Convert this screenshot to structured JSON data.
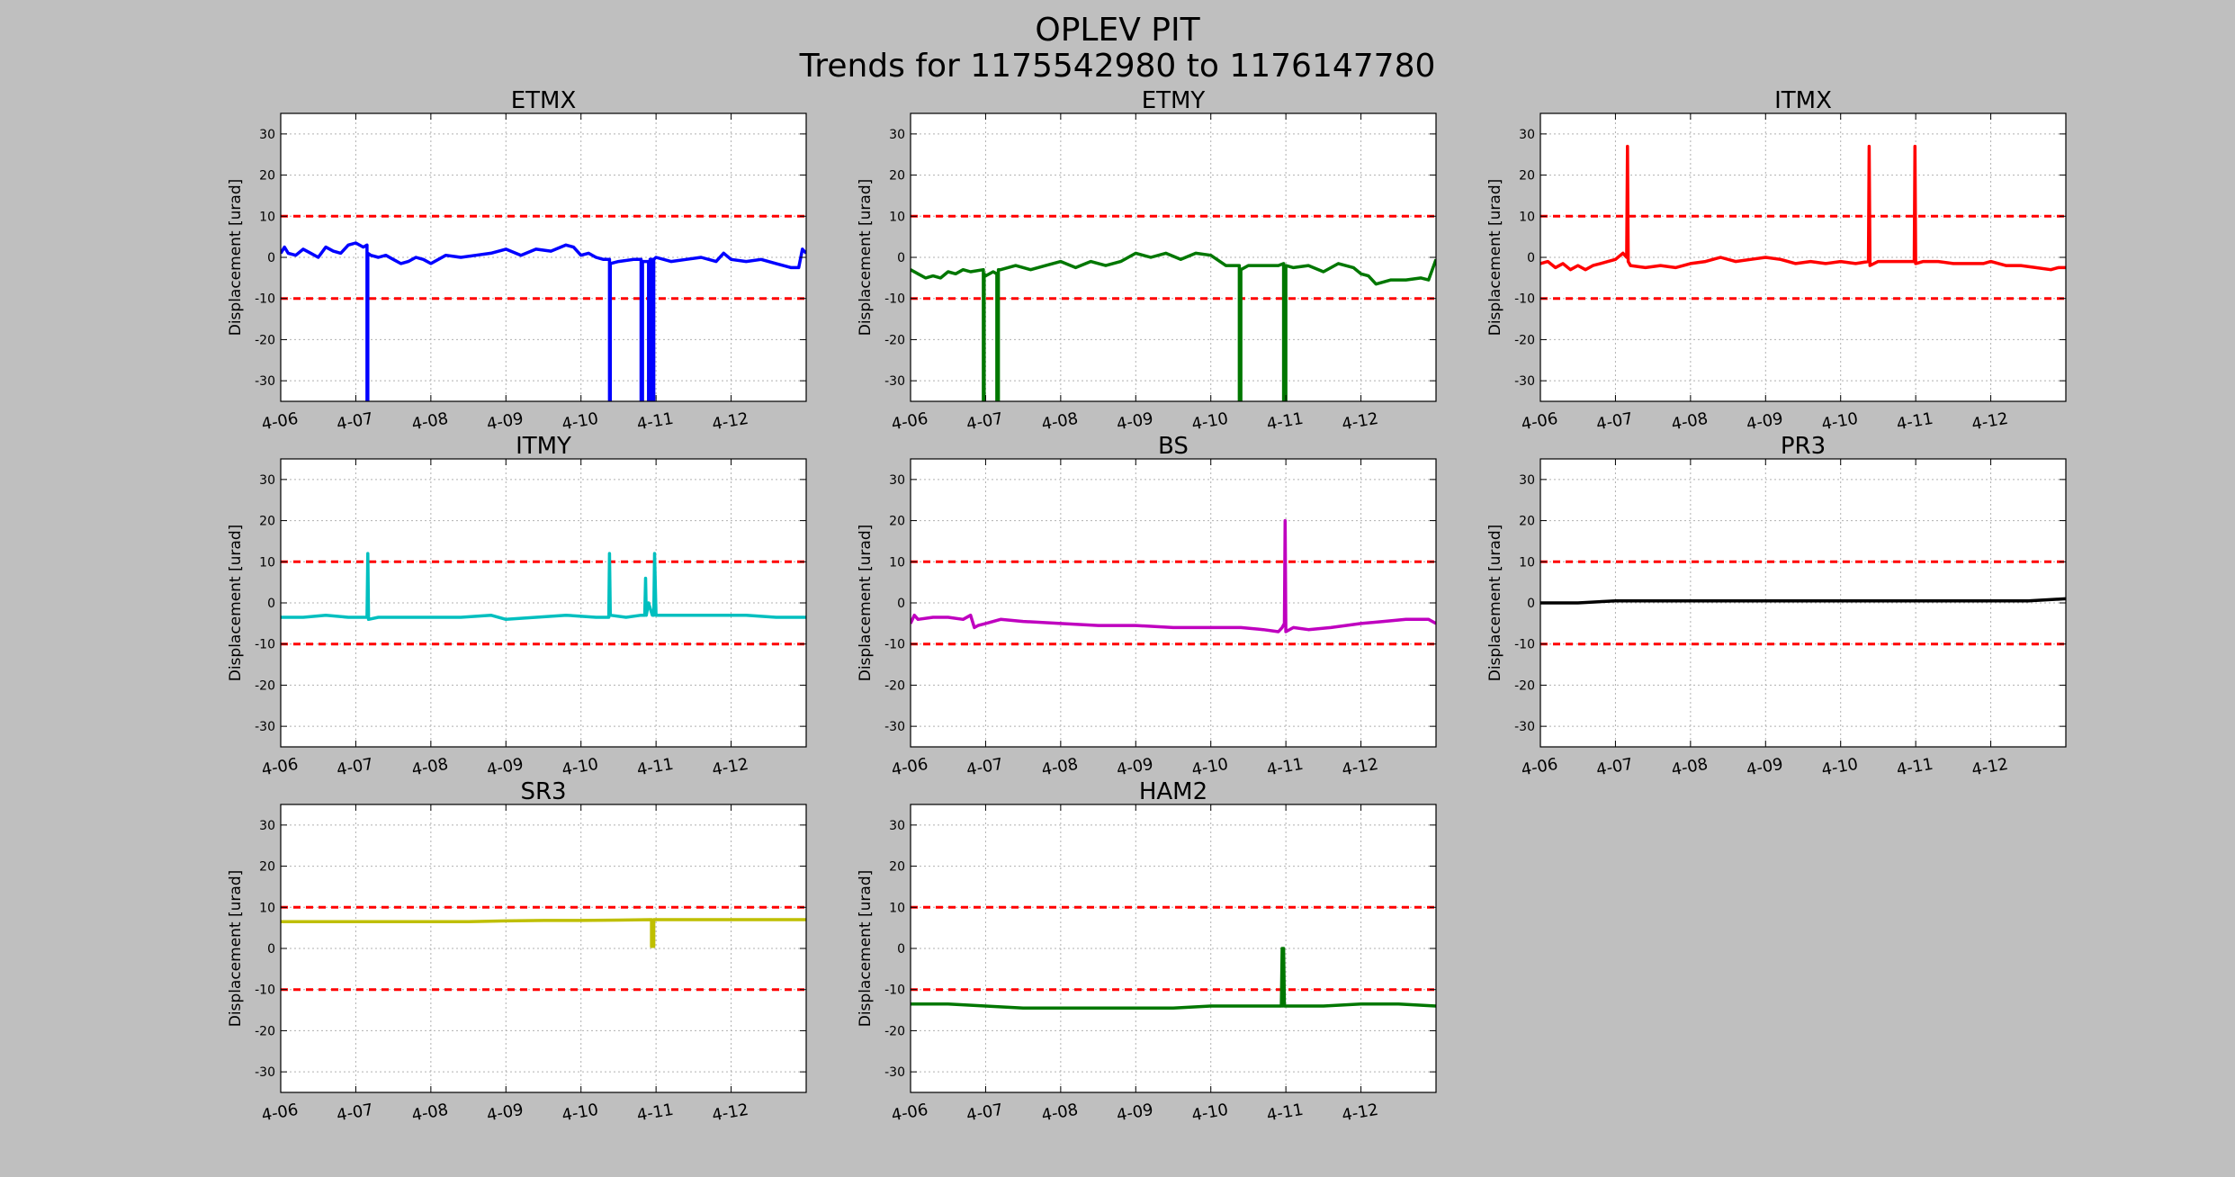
{
  "figure": {
    "title_line1": "OPLEV PIT",
    "title_line2": "Trends for 1175542980 to 1176147780",
    "background": "#bfbfbf"
  },
  "chart_data": [
    {
      "type": "line",
      "title": "ETMX",
      "ylabel": "Displacement [urad]",
      "xlabel": "",
      "ylim": [
        -35,
        35
      ],
      "yticks": [
        -30,
        -20,
        -10,
        0,
        10,
        20,
        30
      ],
      "xlim": [
        0,
        7
      ],
      "xticks": [
        0,
        1,
        2,
        3,
        4,
        5,
        6
      ],
      "xtick_labels": [
        "4-06",
        "4-07",
        "4-08",
        "4-09",
        "4-10",
        "4-11",
        "4-12"
      ],
      "grid": true,
      "thresholds": [
        10,
        -10
      ],
      "threshold_color": "#ff0000",
      "series": [
        {
          "color": "#0000ff",
          "x": [
            0,
            0.05,
            0.1,
            0.2,
            0.3,
            0.4,
            0.5,
            0.6,
            0.7,
            0.8,
            0.9,
            1.0,
            1.1,
            1.15,
            1.15,
            1.16,
            1.16,
            1.2,
            1.3,
            1.4,
            1.5,
            1.6,
            1.7,
            1.8,
            1.9,
            2.0,
            2.2,
            2.4,
            2.6,
            2.8,
            3.0,
            3.2,
            3.4,
            3.6,
            3.8,
            3.9,
            4.0,
            4.1,
            4.2,
            4.3,
            4.38,
            4.38,
            4.39,
            4.39,
            4.5,
            4.7,
            4.8,
            4.8,
            4.82,
            4.82,
            4.9,
            4.9,
            4.92,
            4.92,
            4.95,
            4.95,
            4.97,
            4.97,
            5.0,
            5.2,
            5.4,
            5.6,
            5.8,
            5.9,
            6.0,
            6.2,
            6.4,
            6.6,
            6.8,
            6.9,
            6.95,
            7.0
          ],
          "y": [
            1.0,
            2.5,
            1.0,
            0.5,
            2.0,
            1.0,
            0.0,
            2.5,
            1.5,
            1.0,
            3.0,
            3.5,
            2.5,
            3.0,
            -35,
            -35,
            1.0,
            0.5,
            0.0,
            0.5,
            -0.5,
            -1.5,
            -1.0,
            0.0,
            -0.5,
            -1.5,
            0.5,
            0.0,
            0.5,
            1.0,
            2.0,
            0.5,
            2.0,
            1.5,
            3.0,
            2.5,
            0.5,
            1.0,
            0.0,
            -0.5,
            -0.5,
            -35,
            -35,
            -1.5,
            -1.0,
            -0.5,
            -0.5,
            -35,
            -35,
            -1.0,
            -1.0,
            -35,
            -35,
            -0.5,
            -0.5,
            -35,
            -35,
            -0.5,
            0.0,
            -1.0,
            -0.5,
            0.0,
            -1.0,
            1.0,
            -0.5,
            -1.0,
            -0.5,
            -1.5,
            -2.5,
            -2.5,
            2.0,
            1.0
          ]
        }
      ]
    },
    {
      "type": "line",
      "title": "ETMY",
      "ylabel": "Displacement [urad]",
      "xlabel": "",
      "ylim": [
        -35,
        35
      ],
      "yticks": [
        -30,
        -20,
        -10,
        0,
        10,
        20,
        30
      ],
      "xlim": [
        0,
        7
      ],
      "xticks": [
        0,
        1,
        2,
        3,
        4,
        5,
        6
      ],
      "xtick_labels": [
        "4-06",
        "4-07",
        "4-08",
        "4-09",
        "4-10",
        "4-11",
        "4-12"
      ],
      "grid": true,
      "thresholds": [
        10,
        -10
      ],
      "threshold_color": "#ff0000",
      "series": [
        {
          "color": "#007700",
          "x": [
            0,
            0.1,
            0.2,
            0.3,
            0.4,
            0.5,
            0.6,
            0.7,
            0.8,
            0.97,
            0.97,
            0.98,
            0.98,
            1.0,
            1.1,
            1.15,
            1.15,
            1.17,
            1.17,
            1.2,
            1.4,
            1.6,
            1.8,
            2.0,
            2.2,
            2.4,
            2.6,
            2.8,
            3.0,
            3.2,
            3.4,
            3.6,
            3.8,
            4.0,
            4.2,
            4.38,
            4.38,
            4.4,
            4.4,
            4.5,
            4.7,
            4.9,
            4.97,
            4.97,
            5.0,
            5.0,
            5.1,
            5.3,
            5.5,
            5.7,
            5.9,
            6.0,
            6.1,
            6.2,
            6.4,
            6.6,
            6.8,
            6.9,
            7.0
          ],
          "y": [
            -3.0,
            -4.0,
            -5.0,
            -4.5,
            -5.0,
            -3.5,
            -4.0,
            -3.0,
            -3.5,
            -3.0,
            -35,
            -35,
            -4.0,
            -4.5,
            -3.5,
            -4.0,
            -35,
            -35,
            -3.0,
            -3.0,
            -2.0,
            -3.0,
            -2.0,
            -1.0,
            -2.5,
            -1.0,
            -2.0,
            -1.0,
            1.0,
            0.0,
            1.0,
            -0.5,
            1.0,
            0.5,
            -2.0,
            -2.0,
            -35,
            -35,
            -3.0,
            -2.0,
            -2.0,
            -2.0,
            -1.5,
            -35,
            -35,
            -2.0,
            -2.5,
            -2.0,
            -3.5,
            -1.5,
            -2.5,
            -4.0,
            -4.5,
            -6.5,
            -5.5,
            -5.5,
            -5.0,
            -5.5,
            -0.5
          ]
        }
      ]
    },
    {
      "type": "line",
      "title": "ITMX",
      "ylabel": "Displacement [urad]",
      "xlabel": "",
      "ylim": [
        -35,
        35
      ],
      "yticks": [
        -30,
        -20,
        -10,
        0,
        10,
        20,
        30
      ],
      "xlim": [
        0,
        7
      ],
      "xticks": [
        0,
        1,
        2,
        3,
        4,
        5,
        6
      ],
      "xtick_labels": [
        "4-06",
        "4-07",
        "4-08",
        "4-09",
        "4-10",
        "4-11",
        "4-12"
      ],
      "grid": true,
      "thresholds": [
        10,
        -10
      ],
      "threshold_color": "#ff0000",
      "series": [
        {
          "color": "#ff0000",
          "x": [
            0,
            0.1,
            0.2,
            0.3,
            0.4,
            0.5,
            0.6,
            0.7,
            0.8,
            0.9,
            1.0,
            1.1,
            1.15,
            1.16,
            1.17,
            1.2,
            1.4,
            1.6,
            1.8,
            2.0,
            2.2,
            2.4,
            2.6,
            2.8,
            3.0,
            3.2,
            3.4,
            3.6,
            3.8,
            4.0,
            4.2,
            4.37,
            4.38,
            4.39,
            4.5,
            4.7,
            4.9,
            4.98,
            4.99,
            5.0,
            5.1,
            5.3,
            5.5,
            5.7,
            5.9,
            6.0,
            6.2,
            6.4,
            6.6,
            6.8,
            6.9,
            7.0
          ],
          "y": [
            -1.5,
            -1.0,
            -2.5,
            -1.5,
            -3.0,
            -2.0,
            -3.0,
            -2.0,
            -1.5,
            -1.0,
            -0.5,
            1.0,
            0.0,
            27.0,
            -1.0,
            -2.0,
            -2.5,
            -2.0,
            -2.5,
            -1.5,
            -1.0,
            0.0,
            -1.0,
            -0.5,
            0.0,
            -0.5,
            -1.5,
            -1.0,
            -1.5,
            -1.0,
            -1.5,
            -1.0,
            27.0,
            -2.0,
            -1.0,
            -1.0,
            -1.0,
            -1.0,
            27.0,
            -1.5,
            -1.0,
            -1.0,
            -1.5,
            -1.5,
            -1.5,
            -1.0,
            -2.0,
            -2.0,
            -2.5,
            -3.0,
            -2.5,
            -2.5
          ]
        }
      ]
    },
    {
      "type": "line",
      "title": "ITMY",
      "ylabel": "Displacement [urad]",
      "xlabel": "",
      "ylim": [
        -35,
        35
      ],
      "yticks": [
        -30,
        -20,
        -10,
        0,
        10,
        20,
        30
      ],
      "xlim": [
        0,
        7
      ],
      "xticks": [
        0,
        1,
        2,
        3,
        4,
        5,
        6
      ],
      "xtick_labels": [
        "4-06",
        "4-07",
        "4-08",
        "4-09",
        "4-10",
        "4-11",
        "4-12"
      ],
      "grid": true,
      "thresholds": [
        10,
        -10
      ],
      "threshold_color": "#ff0000",
      "series": [
        {
          "color": "#00bfbf",
          "x": [
            0,
            0.3,
            0.6,
            0.9,
            1.1,
            1.15,
            1.16,
            1.17,
            1.3,
            1.6,
            2.0,
            2.4,
            2.8,
            3.0,
            3.4,
            3.8,
            4.2,
            4.37,
            4.38,
            4.39,
            4.6,
            4.8,
            4.85,
            4.86,
            4.87,
            4.9,
            4.95,
            4.97,
            4.98,
            5.0,
            5.4,
            5.8,
            6.2,
            6.6,
            7.0
          ],
          "y": [
            -3.5,
            -3.5,
            -3.0,
            -3.5,
            -3.5,
            -3.5,
            12.0,
            -4.0,
            -3.5,
            -3.5,
            -3.5,
            -3.5,
            -3.0,
            -4.0,
            -3.5,
            -3.0,
            -3.5,
            -3.5,
            12.0,
            -3.0,
            -3.5,
            -3.0,
            -3.0,
            6.0,
            -3.0,
            0.0,
            -3.0,
            -3.0,
            12.0,
            -3.0,
            -3.0,
            -3.0,
            -3.0,
            -3.5,
            -3.5
          ]
        }
      ]
    },
    {
      "type": "line",
      "title": "BS",
      "ylabel": "Displacement [urad]",
      "xlabel": "",
      "ylim": [
        -35,
        35
      ],
      "yticks": [
        -30,
        -20,
        -10,
        0,
        10,
        20,
        30
      ],
      "xlim": [
        0,
        7
      ],
      "xticks": [
        0,
        1,
        2,
        3,
        4,
        5,
        6
      ],
      "xtick_labels": [
        "4-06",
        "4-07",
        "4-08",
        "4-09",
        "4-10",
        "4-11",
        "4-12"
      ],
      "grid": true,
      "thresholds": [
        10,
        -10
      ],
      "threshold_color": "#ff0000",
      "series": [
        {
          "color": "#bf00bf",
          "x": [
            0,
            0.05,
            0.1,
            0.3,
            0.5,
            0.7,
            0.8,
            0.85,
            0.9,
            1.0,
            1.2,
            1.5,
            2.0,
            2.5,
            3.0,
            3.5,
            4.0,
            4.4,
            4.7,
            4.9,
            4.95,
            4.98,
            4.99,
            5.0,
            5.1,
            5.3,
            5.6,
            5.8,
            6.0,
            6.3,
            6.6,
            6.9,
            7.0
          ],
          "y": [
            -5.0,
            -3.0,
            -4.0,
            -3.5,
            -3.5,
            -4.0,
            -3.0,
            -6.0,
            -5.5,
            -5.0,
            -4.0,
            -4.5,
            -5.0,
            -5.5,
            -5.5,
            -6.0,
            -6.0,
            -6.0,
            -6.5,
            -7.0,
            -6.0,
            -5.0,
            20.0,
            -7.0,
            -6.0,
            -6.5,
            -6.0,
            -5.5,
            -5.0,
            -4.5,
            -4.0,
            -4.0,
            -5.0
          ]
        }
      ]
    },
    {
      "type": "line",
      "title": "PR3",
      "ylabel": "Displacement [urad]",
      "xlabel": "",
      "ylim": [
        -35,
        35
      ],
      "yticks": [
        -30,
        -20,
        -10,
        0,
        10,
        20,
        30
      ],
      "xlim": [
        0,
        7
      ],
      "xticks": [
        0,
        1,
        2,
        3,
        4,
        5,
        6
      ],
      "xtick_labels": [
        "4-06",
        "4-07",
        "4-08",
        "4-09",
        "4-10",
        "4-11",
        "4-12"
      ],
      "grid": true,
      "thresholds": [
        10,
        -10
      ],
      "threshold_color": "#ff0000",
      "series": [
        {
          "color": "#000000",
          "x": [
            0,
            0.5,
            1.0,
            1.5,
            2.0,
            3.0,
            4.0,
            5.0,
            5.4,
            6.0,
            6.5,
            7.0
          ],
          "y": [
            0.0,
            0.0,
            0.5,
            0.5,
            0.5,
            0.5,
            0.5,
            0.5,
            0.5,
            0.5,
            0.5,
            1.0
          ]
        }
      ]
    },
    {
      "type": "line",
      "title": "SR3",
      "ylabel": "Displacement [urad]",
      "xlabel": "",
      "ylim": [
        -35,
        35
      ],
      "yticks": [
        -30,
        -20,
        -10,
        0,
        10,
        20,
        30
      ],
      "xlim": [
        0,
        7
      ],
      "xticks": [
        0,
        1,
        2,
        3,
        4,
        5,
        6
      ],
      "xtick_labels": [
        "4-06",
        "4-07",
        "4-08",
        "4-09",
        "4-10",
        "4-11",
        "4-12"
      ],
      "grid": true,
      "thresholds": [
        10,
        -10
      ],
      "threshold_color": "#ff0000",
      "series": [
        {
          "color": "#bfbf00",
          "x": [
            0,
            0.5,
            1.0,
            1.5,
            2.0,
            2.5,
            3.0,
            3.5,
            4.0,
            4.5,
            4.93,
            4.94,
            4.94,
            4.97,
            4.97,
            4.98,
            5.0,
            5.5,
            6.0,
            6.5,
            7.0
          ],
          "y": [
            6.5,
            6.5,
            6.5,
            6.5,
            6.5,
            6.5,
            6.7,
            6.8,
            6.8,
            6.9,
            7.0,
            7.0,
            0.5,
            0.5,
            7.0,
            7.0,
            7.0,
            7.0,
            7.0,
            7.0,
            7.0
          ]
        }
      ]
    },
    {
      "type": "line",
      "title": "HAM2",
      "ylabel": "Displacement [urad]",
      "xlabel": "",
      "ylim": [
        -35,
        35
      ],
      "yticks": [
        -30,
        -20,
        -10,
        0,
        10,
        20,
        30
      ],
      "xlim": [
        0,
        7
      ],
      "xticks": [
        0,
        1,
        2,
        3,
        4,
        5,
        6
      ],
      "xtick_labels": [
        "4-06",
        "4-07",
        "4-08",
        "4-09",
        "4-10",
        "4-11",
        "4-12"
      ],
      "grid": true,
      "thresholds": [
        10,
        -10
      ],
      "threshold_color": "#ff0000",
      "series": [
        {
          "color": "#007700",
          "x": [
            0,
            0.5,
            1.0,
            1.5,
            2.0,
            2.5,
            3.0,
            3.5,
            4.0,
            4.5,
            4.94,
            4.95,
            4.96,
            4.97,
            4.98,
            5.0,
            5.5,
            6.0,
            6.5,
            7.0
          ],
          "y": [
            -13.5,
            -13.5,
            -14.0,
            -14.5,
            -14.5,
            -14.5,
            -14.5,
            -14.5,
            -14.0,
            -14.0,
            -14.0,
            0.0,
            -14.0,
            0.0,
            -14.0,
            -14.0,
            -14.0,
            -13.5,
            -13.5,
            -14.0
          ]
        }
      ]
    }
  ]
}
